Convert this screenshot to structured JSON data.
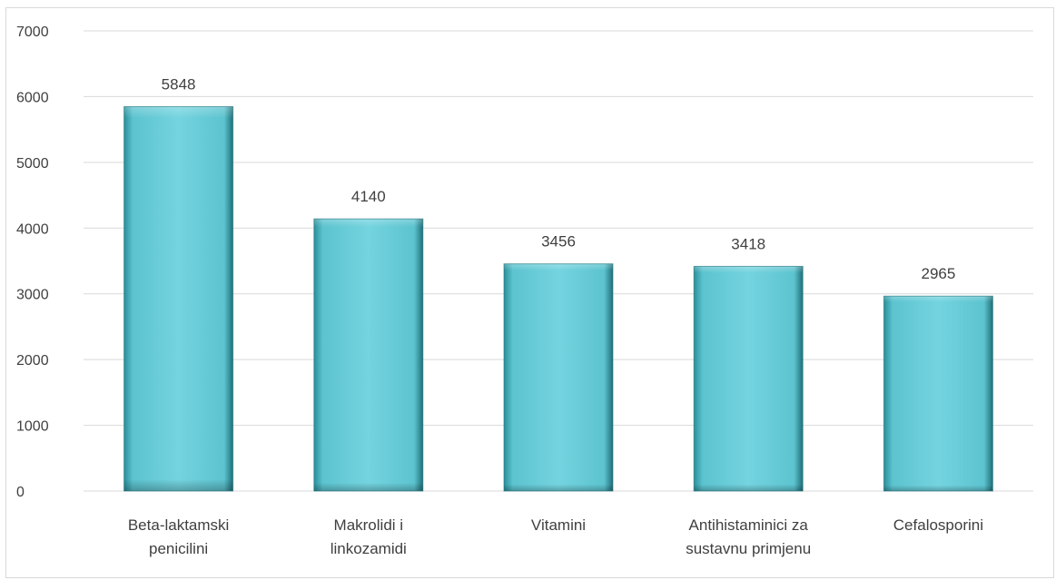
{
  "chart_data": {
    "type": "bar",
    "categories": [
      [
        "Beta-laktamski",
        "penicilini"
      ],
      [
        "Makrolidi i",
        "linkozamidi"
      ],
      [
        "Vitamini"
      ],
      [
        "Antihistaminici za",
        "sustavnu primjenu"
      ],
      [
        "Cefalosporini"
      ]
    ],
    "values": [
      5848,
      4140,
      3456,
      3418,
      2965
    ],
    "ylim": [
      0,
      7000
    ],
    "yticks": [
      0,
      1000,
      2000,
      3000,
      4000,
      5000,
      6000,
      7000
    ],
    "grid": true,
    "legend": "none",
    "colors": {
      "bar_light": "#72d3de",
      "bar_mid": "#5cc3cf",
      "bar_dark": "#1f6f78",
      "gridline": "#d9d9d9",
      "text": "#404040"
    }
  }
}
